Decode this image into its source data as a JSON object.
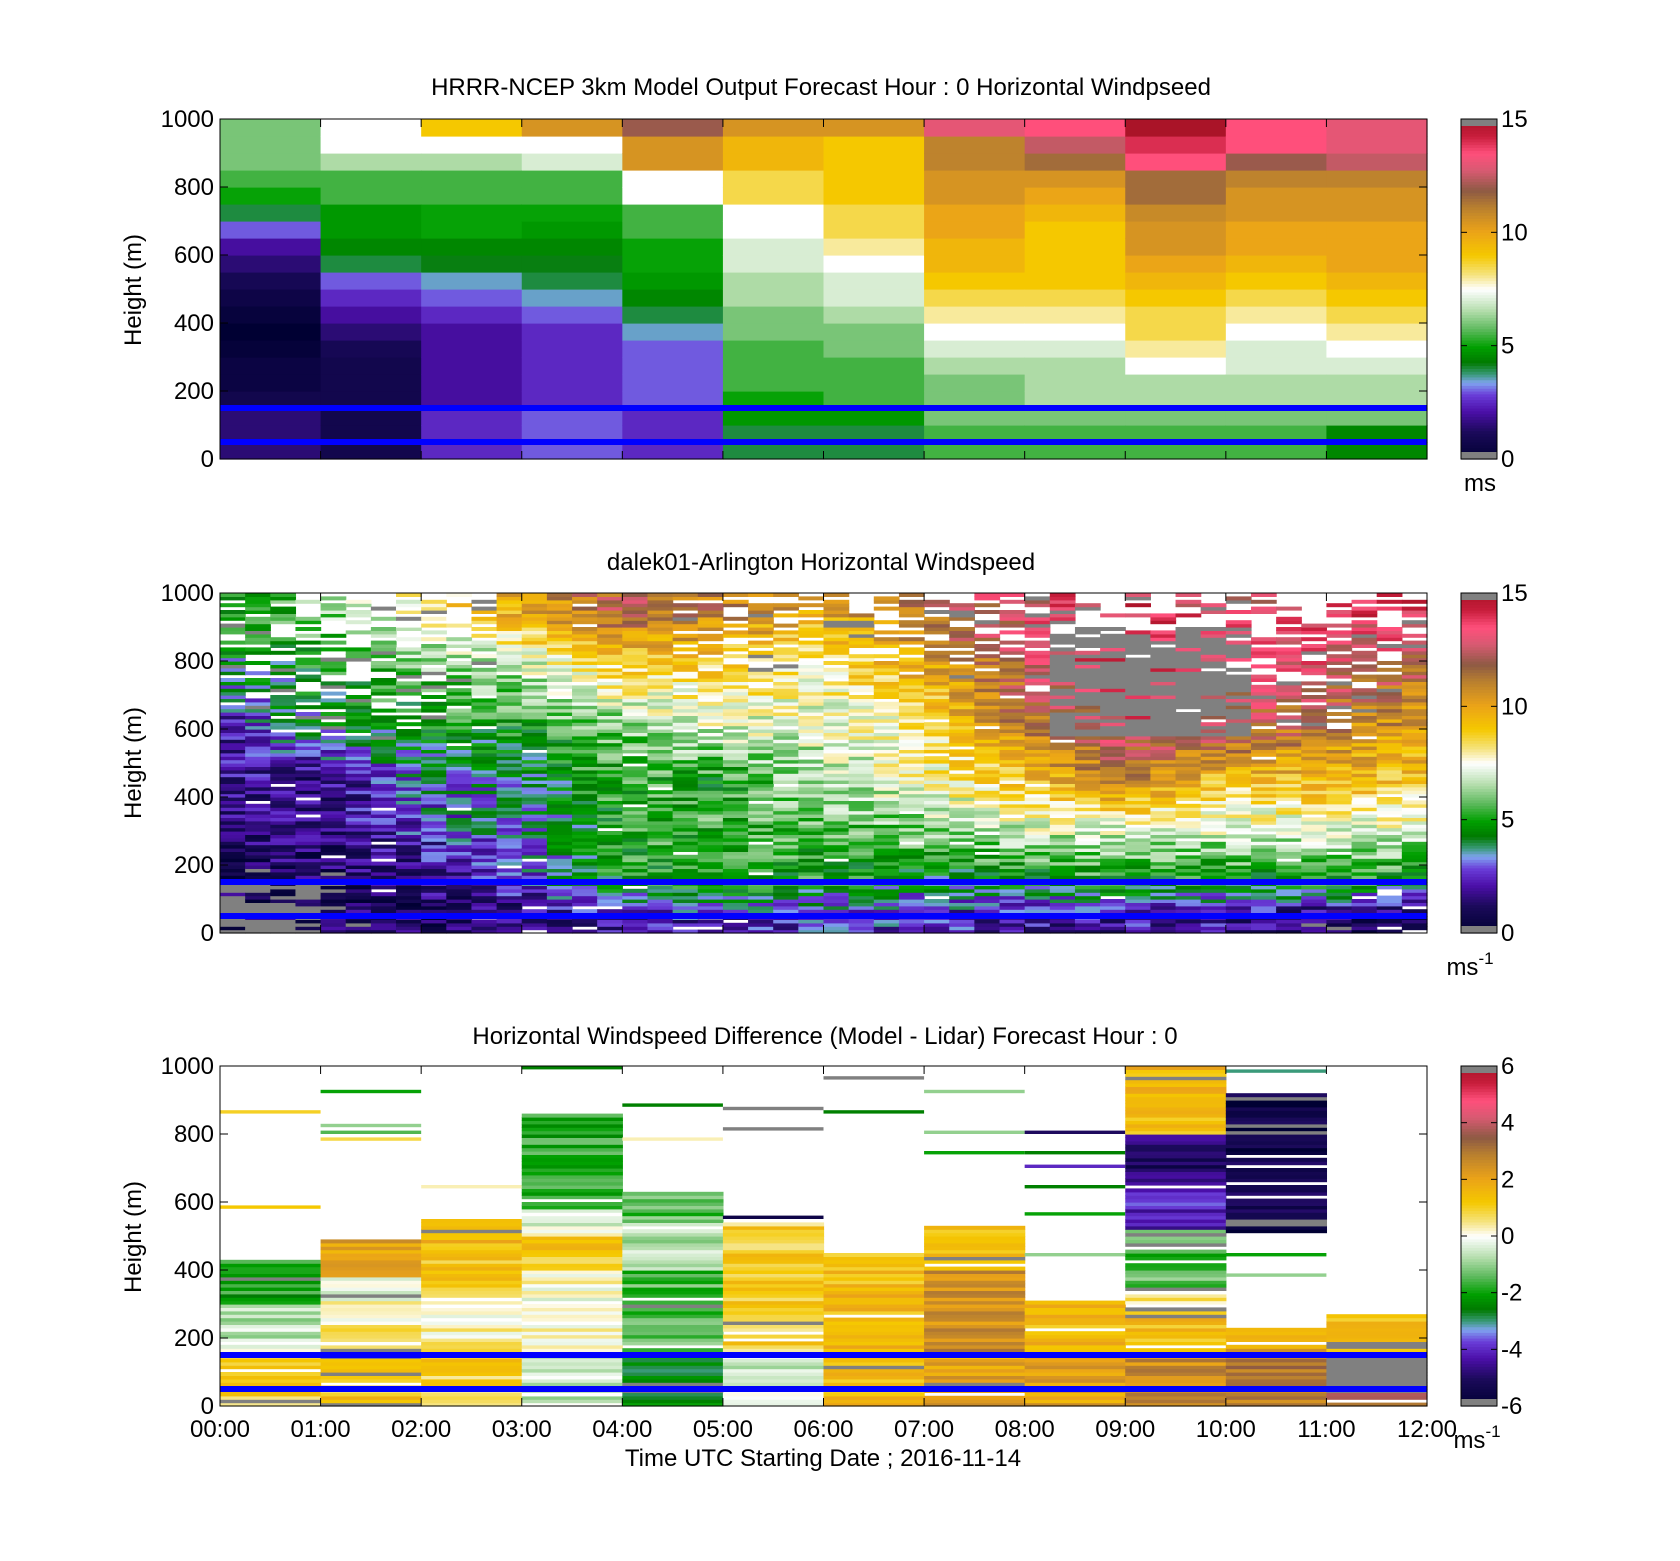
{
  "figure": {
    "xlabel": "Time UTC  Starting Date ; 2016-11-14",
    "x_tick_labels": [
      "00:00",
      "01:00",
      "02:00",
      "03:00",
      "04:00",
      "05:00",
      "06:00",
      "07:00",
      "08:00",
      "09:00",
      "10:00",
      "11:00",
      "12:00"
    ],
    "reference_line_heights_m": [
      150,
      50
    ],
    "reference_line_color": "#0000ff"
  },
  "chart_data": [
    {
      "type": "heatmap",
      "title": "HRRR-NCEP 3km Model Output   Forecast Hour : 0 Horizontal Windpseed",
      "ylabel": "Height (m)",
      "ylim": [
        0,
        1000
      ],
      "y_ticks": [
        0,
        200,
        400,
        600,
        800,
        1000
      ],
      "x_range_hours": [
        0,
        12
      ],
      "colorbar": {
        "min": 0,
        "max": 15,
        "ticks": [
          0,
          5,
          10,
          15
        ],
        "unit": "ms",
        "unit_sup": ""
      },
      "cell_height_m": 50,
      "rows_x_hours": [
        0,
        1,
        2,
        3,
        4,
        5,
        6,
        7,
        8,
        9,
        10,
        11
      ],
      "columns_ws_bottom_to_top": [
        [
          1.5,
          1.5,
          1.5,
          0.8,
          0.5,
          0.5,
          0.2,
          0.0,
          0.3,
          0.6,
          1.0,
          1.5,
          2.0,
          3.0,
          4.0,
          5.0,
          5.5,
          6.0,
          6.0,
          6.0
        ],
        [
          0.8,
          0.8,
          0.8,
          0.8,
          0.8,
          0.8,
          1.0,
          1.5,
          2.0,
          2.5,
          3.0,
          4.0,
          4.5,
          4.8,
          4.8,
          5.5,
          5.5,
          6.5,
          7.5,
          7.5
        ],
        [
          2.5,
          2.5,
          2.5,
          2.0,
          2.0,
          2.0,
          2.0,
          2.0,
          2.5,
          3.0,
          3.5,
          4.2,
          4.5,
          5.0,
          5.0,
          5.5,
          5.5,
          6.5,
          7.5,
          9.0
        ],
        [
          3.0,
          3.0,
          3.0,
          2.5,
          2.5,
          2.5,
          2.5,
          2.5,
          3.0,
          3.5,
          4.0,
          4.2,
          4.5,
          4.8,
          5.0,
          5.5,
          5.5,
          7.0,
          7.5,
          10.5
        ],
        [
          2.5,
          2.5,
          2.5,
          3.0,
          3.0,
          3.0,
          3.0,
          3.5,
          4.0,
          4.5,
          4.8,
          5.0,
          5.0,
          5.5,
          5.5,
          7.5,
          7.5,
          10.5,
          10.5,
          12.0
        ],
        [
          4.0,
          4.0,
          4.8,
          5.0,
          5.5,
          5.5,
          5.5,
          6.0,
          6.0,
          6.5,
          6.5,
          7.0,
          7.0,
          7.5,
          7.5,
          8.5,
          8.5,
          9.5,
          9.5,
          10.5
        ],
        [
          4.0,
          4.0,
          4.8,
          5.5,
          5.5,
          5.5,
          6.0,
          6.0,
          6.5,
          7.0,
          7.0,
          7.5,
          8.0,
          8.5,
          8.5,
          9.0,
          9.0,
          9.0,
          9.0,
          10.5
        ],
        [
          5.5,
          5.5,
          6.0,
          6.0,
          6.0,
          6.5,
          7.0,
          7.5,
          8.0,
          8.5,
          9.0,
          9.5,
          9.5,
          10.0,
          10.0,
          10.5,
          10.5,
          11.0,
          11.0,
          13.0
        ],
        [
          5.5,
          5.5,
          6.0,
          6.5,
          6.5,
          6.5,
          7.0,
          7.5,
          8.0,
          8.5,
          9.0,
          9.0,
          9.0,
          9.0,
          9.5,
          10.0,
          10.5,
          11.5,
          12.5,
          13.5
        ],
        [
          5.5,
          5.5,
          6.0,
          6.5,
          6.5,
          7.5,
          8.0,
          8.5,
          8.5,
          9.0,
          9.5,
          10.0,
          10.5,
          10.5,
          10.8,
          11.5,
          11.5,
          13.5,
          14.0,
          15.0
        ],
        [
          5.5,
          5.5,
          6.0,
          6.5,
          6.5,
          7.0,
          7.0,
          7.5,
          8.0,
          8.5,
          9.0,
          9.5,
          10.0,
          10.0,
          10.5,
          10.5,
          11.0,
          12.0,
          13.5,
          13.5
        ],
        [
          4.5,
          4.5,
          6.0,
          6.5,
          6.5,
          7.0,
          7.5,
          8.0,
          8.5,
          9.0,
          9.5,
          10.0,
          10.0,
          10.0,
          10.5,
          10.5,
          11.0,
          12.5,
          13.0,
          13.0
        ]
      ]
    },
    {
      "type": "heatmap",
      "title": "dalek01-Arlington  Horizontal Windspeed",
      "ylabel": "Height (m)",
      "ylim": [
        0,
        1000
      ],
      "y_ticks": [
        0,
        200,
        400,
        600,
        800,
        1000
      ],
      "x_range_hours": [
        0,
        12
      ],
      "colorbar": {
        "min": 0,
        "max": 15,
        "ticks": [
          0,
          5,
          10,
          15
        ],
        "unit": "ms",
        "unit_sup": "-1"
      },
      "time_resolution_hours": 0.25,
      "height_resolution_m": 10,
      "profile_anchor_hours": [
        0,
        1,
        2,
        3,
        4,
        5,
        6,
        7,
        8,
        9,
        10,
        11,
        12
      ],
      "profile_anchor_heights_m": [
        50,
        150,
        300,
        450,
        600,
        800,
        950
      ],
      "profile_anchor_ws": [
        [
          0.5,
          1.0,
          1.5,
          2.0,
          2.0,
          4.0,
          5.0
        ],
        [
          1.0,
          1.0,
          1.5,
          1.5,
          4.0,
          5.0,
          6.0
        ],
        [
          1.0,
          1.5,
          2.5,
          3.5,
          4.5,
          6.0,
          8.0
        ],
        [
          1.5,
          2.5,
          3.5,
          3.5,
          5.0,
          7.0,
          10.0
        ],
        [
          2.0,
          5.0,
          5.0,
          5.5,
          6.0,
          9.0,
          12.0
        ],
        [
          2.5,
          5.0,
          5.5,
          5.0,
          7.0,
          9.0,
          11.0
        ],
        [
          2.5,
          5.0,
          5.5,
          6.5,
          7.0,
          8.0,
          10.0
        ],
        [
          2.5,
          4.0,
          6.0,
          7.5,
          8.0,
          10.0,
          11.5
        ],
        [
          2.0,
          4.5,
          7.0,
          9.0,
          11.0,
          12.5,
          13.0
        ],
        [
          2.0,
          5.0,
          7.0,
          11.0,
          13.0,
          14.0,
          14.0
        ],
        [
          2.0,
          4.5,
          7.0,
          9.0,
          12.5,
          13.0,
          13.0
        ],
        [
          1.0,
          5.0,
          7.0,
          9.5,
          11.0,
          13.0,
          13.5
        ],
        [
          1.0,
          4.5,
          7.0,
          9.0,
          10.0,
          12.0,
          14.0
        ]
      ],
      "missing_data_top_m": [
        [
          0,
          700
        ],
        [
          0.75,
          600
        ],
        [
          1.5,
          560
        ],
        [
          2.5,
          640
        ],
        [
          3,
          1000
        ],
        [
          4,
          1000
        ],
        [
          5,
          740
        ],
        [
          6,
          760
        ],
        [
          7,
          760
        ],
        [
          8,
          720
        ],
        [
          9,
          600
        ],
        [
          10,
          620
        ],
        [
          11,
          580
        ],
        [
          12,
          760
        ]
      ],
      "flagged_gray_regions": [
        {
          "x_hours": [
            8.3,
            10.3
          ],
          "heights_m": [
            580,
            900
          ]
        },
        {
          "x_hours": [
            0.0,
            1.0
          ],
          "heights_m": [
            0,
            150
          ]
        }
      ]
    },
    {
      "type": "heatmap",
      "title": "Horizontal Windspeed Difference (Model - Lidar) Forecast Hour : 0",
      "ylabel": "Height (m)",
      "ylim": [
        0,
        1000
      ],
      "y_ticks": [
        0,
        200,
        400,
        600,
        800,
        1000
      ],
      "x_range_hours": [
        0,
        12
      ],
      "colorbar": {
        "min": -6,
        "max": 6,
        "ticks": [
          -6,
          -4,
          -2,
          0,
          2,
          4,
          6
        ],
        "unit": "ms",
        "unit_sup": "-1"
      },
      "height_resolution_m": 10,
      "columns": [
        {
          "hour": 0,
          "bands": [
            [
              0,
              60,
              1.0
            ],
            [
              60,
              150,
              1.0
            ],
            [
              150,
              200,
              0.0
            ],
            [
              200,
              300,
              -0.7
            ],
            [
              300,
              430,
              -2.0
            ]
          ],
          "stray_lines": [
            [
              860,
              1.0
            ],
            [
              580,
              1.2
            ]
          ]
        },
        {
          "hour": 1,
          "bands": [
            [
              0,
              150,
              1.2
            ],
            [
              150,
              250,
              0.5
            ],
            [
              250,
              380,
              0.0
            ],
            [
              380,
              430,
              1.8
            ],
            [
              430,
              490,
              2.0
            ]
          ],
          "stray_lines": [
            [
              920,
              -2.0
            ],
            [
              820,
              -1.0
            ],
            [
              800,
              -1.5
            ],
            [
              780,
              0.8
            ]
          ]
        },
        {
          "hour": 2,
          "bands": [
            [
              0,
              150,
              1.0
            ],
            [
              150,
              350,
              0.3
            ],
            [
              350,
              480,
              1.3
            ],
            [
              480,
              550,
              1.5
            ]
          ],
          "stray_lines": [
            [
              640,
              0.3
            ]
          ]
        },
        {
          "hour": 3,
          "bands": [
            [
              0,
              150,
              -0.5
            ],
            [
              150,
              400,
              0.0
            ],
            [
              400,
              500,
              1.2
            ],
            [
              500,
              580,
              -0.3
            ],
            [
              580,
              860,
              -1.8
            ]
          ],
          "stray_lines": [
            [
              990,
              -2.5
            ]
          ]
        },
        {
          "hour": 4,
          "bands": [
            [
              0,
              150,
              -2.5
            ],
            [
              150,
              400,
              -1.5
            ],
            [
              400,
              540,
              -0.8
            ],
            [
              540,
              640,
              -1.5
            ]
          ],
          "stray_lines": [
            [
              880,
              -2.5
            ],
            [
              780,
              0.3
            ]
          ]
        },
        {
          "hour": 5,
          "bands": [
            [
              0,
              150,
              -0.3
            ],
            [
              150,
              540,
              1.0
            ]
          ],
          "stray_lines": [
            [
              870,
              -8.0
            ],
            [
              810,
              -8.0
            ],
            [
              550,
              -5.5
            ]
          ]
        },
        {
          "hour": 6,
          "bands": [
            [
              0,
              150,
              1.5
            ],
            [
              150,
              450,
              1.5
            ]
          ],
          "stray_lines": [
            [
              960,
              -8.0
            ],
            [
              860,
              -2.5
            ]
          ]
        },
        {
          "hour": 7,
          "bands": [
            [
              0,
              150,
              2.0
            ],
            [
              150,
              400,
              2.5
            ],
            [
              400,
              530,
              1.5
            ]
          ],
          "stray_lines": [
            [
              920,
              -1.0
            ],
            [
              800,
              -1.0
            ],
            [
              740,
              -2.0
            ]
          ]
        },
        {
          "hour": 8,
          "bands": [
            [
              0,
              150,
              2.0
            ],
            [
              150,
              310,
              1.5
            ]
          ],
          "stray_lines": [
            [
              800,
              -5.0
            ],
            [
              740,
              -2.5
            ],
            [
              700,
              -4.0
            ],
            [
              640,
              -2.5
            ],
            [
              560,
              -2.0
            ],
            [
              440,
              -1.0
            ]
          ]
        },
        {
          "hour": 9,
          "bands": [
            [
              0,
              150,
              2.5
            ],
            [
              150,
              260,
              1.5
            ],
            [
              260,
              350,
              0.5
            ],
            [
              350,
              520,
              -1.5
            ],
            [
              520,
              650,
              -4.0
            ],
            [
              650,
              800,
              -5.0
            ],
            [
              800,
              1000,
              1.5
            ]
          ],
          "stray_lines": []
        },
        {
          "hour": 10,
          "bands": [
            [
              0,
              150,
              3.0
            ],
            [
              150,
              230,
              2.0
            ],
            [
              510,
              920,
              -5.5
            ]
          ],
          "stray_lines": [
            [
              980,
              -3.0
            ],
            [
              440,
              -2.0
            ],
            [
              380,
              -1.0
            ]
          ]
        },
        {
          "hour": 11,
          "bands": [
            [
              0,
              60,
              3.5
            ],
            [
              60,
              150,
              -8.0
            ],
            [
              150,
              270,
              1.5
            ]
          ],
          "stray_lines": []
        }
      ]
    }
  ]
}
